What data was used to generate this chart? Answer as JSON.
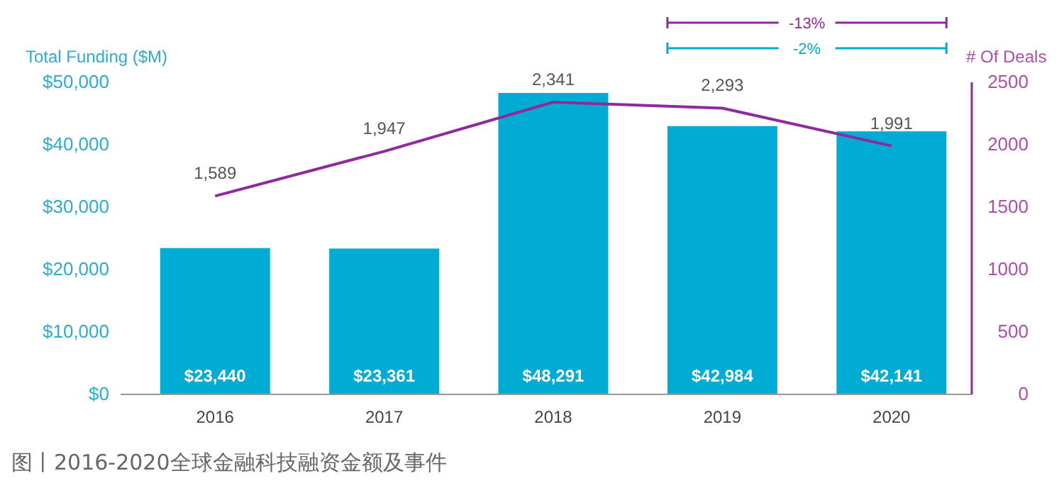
{
  "chart_data": {
    "type": "bar",
    "ylabel": "Total Funding ($M)",
    "y2label": "# Of Deals",
    "categories": [
      "2016",
      "2017",
      "2018",
      "2019",
      "2020"
    ],
    "series": [
      {
        "color": "#00acd4",
        "values": [
          23440,
          23361,
          48291,
          42984,
          42141
        ],
        "value_labels": [
          "$23,440",
          "$23,361",
          "$48,291",
          "$42,984",
          "$42,141"
        ]
      },
      {
        "type": "line",
        "axis": "y2",
        "color": "#8e2a9b",
        "values": [
          1589,
          1947,
          2341,
          2293,
          1991
        ],
        "value_labels": [
          "1,589",
          "1,947",
          "2,341",
          "2,293",
          "1,991"
        ]
      }
    ],
    "ylim": [
      0,
      50000
    ],
    "yticks": [
      {
        "value": 0,
        "label": "$0"
      },
      {
        "value": 10000,
        "label": "$10,000"
      },
      {
        "value": 20000,
        "label": "$20,000"
      },
      {
        "value": 30000,
        "label": "$30,000"
      },
      {
        "value": 40000,
        "label": "$40,000"
      },
      {
        "value": 50000,
        "label": "$50,000"
      }
    ],
    "y2lim": [
      0,
      2500
    ],
    "y2ticks": [
      0,
      500,
      1000,
      1500,
      2000,
      2500
    ],
    "annotations": [
      "-13%",
      "-2%",
      "图丨2016-2020全球金融科技融资金额及事件"
    ],
    "grid": false,
    "marker": "none"
  }
}
